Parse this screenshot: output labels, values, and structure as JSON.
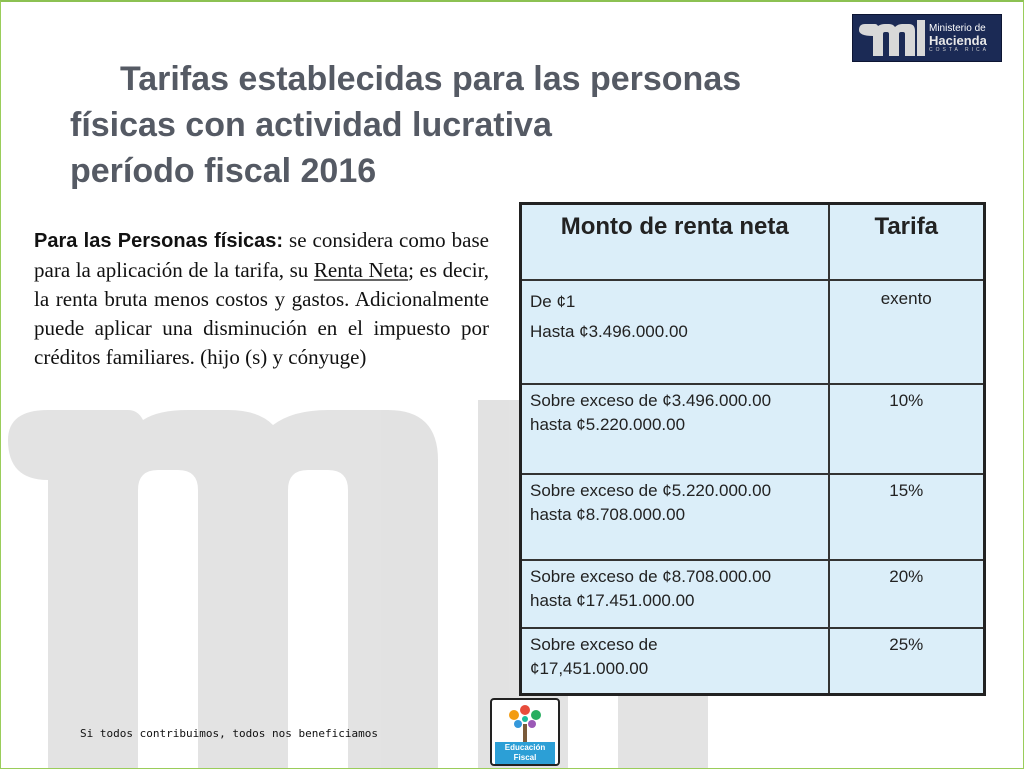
{
  "logo": {
    "line1": "Ministerio de",
    "line2": "Hacienda",
    "line3": "COSTA RICA"
  },
  "title": {
    "line1": "Tarifas establecidas para las personas",
    "line2": "físicas con actividad lucrativa",
    "line3": "período fiscal 2016"
  },
  "body": {
    "lead": "Para las Personas físicas:",
    "part1": " se considera como base para la aplicación de la tarifa, su ",
    "underlined": "Renta Neta",
    "part2": "; es decir, la renta bruta menos costos y gastos. Adicionalmente puede aplicar una disminución en el impuesto por créditos familiares. (hijo (s) y cónyuge)"
  },
  "table": {
    "headers": [
      "Monto de renta neta",
      "Tarifa"
    ],
    "rows": [
      {
        "amount_line1": "De ¢1",
        "amount_line2": "Hasta ¢3.496.000.00",
        "rate": "exento"
      },
      {
        "amount_line1": "Sobre exceso de ¢3.496.000.00",
        "amount_line2": "hasta ¢5.220.000.00",
        "rate": "10%"
      },
      {
        "amount_line1": "Sobre exceso de ¢5.220.000.00",
        "amount_line2": "hasta ¢8.708.000.00",
        "rate": "15%"
      },
      {
        "amount_line1": "Sobre exceso de ¢8.708.000.00",
        "amount_line2": "hasta ¢17.451.000.00",
        "rate": "20%"
      },
      {
        "amount_line1": "Sobre exceso de",
        "amount_line2": "¢17,451.000.00",
        "rate": "25%"
      }
    ]
  },
  "footer": {
    "slogan": "Si todos contribuimos, todos nos beneficiamos",
    "badge_line1": "Educación",
    "badge_line2": "Fiscal"
  },
  "colors": {
    "title": "#555a64",
    "table_bg": "#dbeef9",
    "logo_bg": "#1b2a55",
    "border_green": "#8cc152",
    "watermark": "#d9d9d9"
  }
}
